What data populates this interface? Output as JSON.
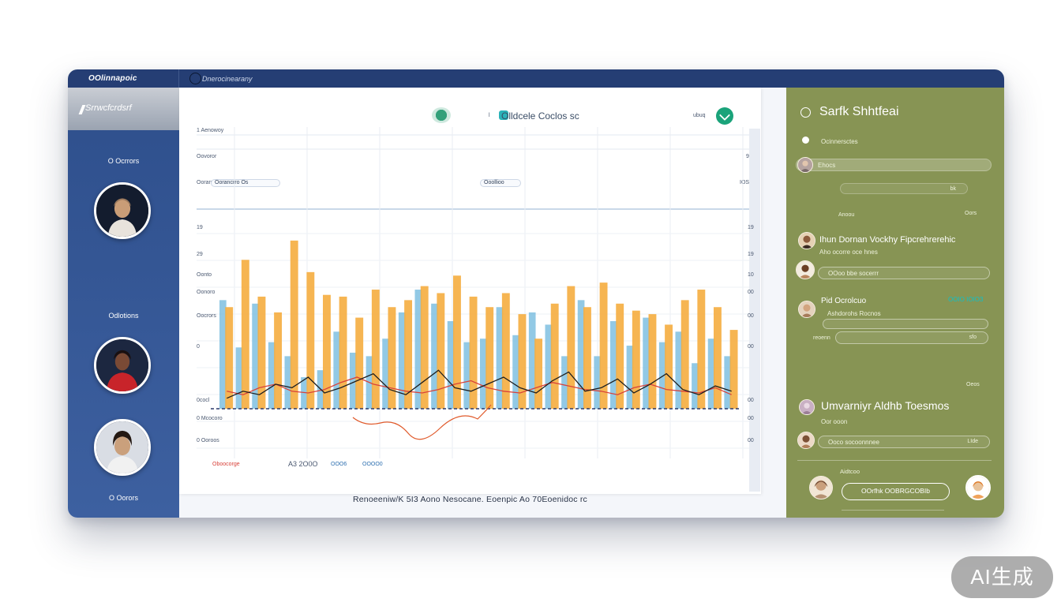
{
  "app": {
    "brand": "OOlinnapoic",
    "breadcrumb": "Dnerocinearany"
  },
  "sidebar": {
    "header_label": "Srrwcfcrdsrf",
    "items": [
      {
        "label": "O Ocrrors"
      },
      {
        "label": "Odlotions"
      },
      {
        "label": "O Oorors"
      }
    ]
  },
  "card": {
    "title": "Olldcele Coclos sc",
    "title_prefix": "l",
    "top_right_label": "ubuq",
    "row_labels": [
      "1 Aenowoy",
      "Oovoror",
      "Oorancrro Os"
    ],
    "row_values": [
      "99",
      "99",
      "IOS9"
    ],
    "chip_mid": "Ooollioo",
    "y_labels_left": [
      "19",
      "29",
      "Oonto",
      "Oonoro",
      "Oocrors",
      "0",
      "0cocl",
      "0 Mcocoro",
      "0 Ooroos"
    ],
    "y_labels_right": [
      "19",
      "19",
      "10",
      "00",
      "00",
      "00",
      "00",
      "00",
      "00"
    ],
    "bottom_legend": "Oboocorge",
    "bottom_codes": [
      "A3 2O0O",
      "OOO6",
      "OOOO0"
    ],
    "footer_caption": "Renoeeniw/K 5I3 Aono Nesocane. Eoenpic Ao 70Eoenidoc rc"
  },
  "chart_data": {
    "type": "bar",
    "title": "Olldcele Coclos sc",
    "xlabel": "",
    "ylabel": "",
    "ylim": [
      0,
      100
    ],
    "series": [
      {
        "name": "Blue",
        "color": "#7fbfe0",
        "values": [
          62,
          35,
          60,
          38,
          30,
          18,
          22,
          44,
          32,
          30,
          40,
          55,
          68,
          60,
          50,
          38,
          40,
          58,
          42,
          55,
          48,
          30,
          62,
          30,
          50,
          36,
          52,
          38,
          44,
          26,
          40,
          30
        ]
      },
      {
        "name": "Orange",
        "color": "#f5ad3f",
        "values": [
          58,
          85,
          64,
          55,
          96,
          78,
          65,
          64,
          52,
          68,
          58,
          62,
          70,
          66,
          76,
          64,
          58,
          66,
          54,
          40,
          60,
          70,
          58,
          72,
          60,
          56,
          54,
          48,
          62,
          68,
          58,
          45
        ]
      },
      {
        "name": "Trend",
        "color": "#d8423a",
        "values": [
          10,
          8,
          12,
          14,
          10,
          9,
          11,
          15,
          18,
          14,
          12,
          10,
          9,
          11,
          14,
          16,
          12,
          10,
          9,
          12,
          15,
          13,
          11,
          10,
          8,
          12,
          14,
          11,
          10,
          9,
          12,
          8
        ]
      },
      {
        "name": "Black",
        "color": "#1f1f1f",
        "values": [
          6,
          10,
          8,
          14,
          12,
          18,
          9,
          12,
          16,
          20,
          11,
          8,
          15,
          22,
          12,
          10,
          14,
          18,
          12,
          9,
          16,
          21,
          10,
          12,
          17,
          9,
          14,
          20,
          11,
          8,
          13,
          10
        ]
      }
    ]
  },
  "right_panel": {
    "title": "Sarfk Shhtfeai",
    "radio_label": "Ocinnersctes",
    "search_value": "Ehocs",
    "field_value": "bk",
    "section1_small": "Anoou",
    "section1_right": "Oors",
    "entry1_title": "Ihun Dornan Vockhy Fipcrehrerehic",
    "entry1_sub": "Aho ocorre oce hnes",
    "entry1_field": "OOoo bbe socerrr",
    "entry2_title": "Pid Ocrolcuo",
    "entry2_link": "OOIO IOIO3",
    "entry2_sub": "Ashdorohs Rocnos",
    "entry2_left": "reoenn",
    "entry2_field": "sfo",
    "section2_right": "Oeos",
    "entry3_title": "Umvarniyr Aldhb Toesmos",
    "entry3_sub": "Oor ooon",
    "entry3_field_left": "Ooco socoonnnee",
    "entry3_field_right": "LIde",
    "section3_label": "Aidtcoo",
    "button_label": "OOrfhk OOBRGCOBIb"
  },
  "watermark": "AI生成"
}
